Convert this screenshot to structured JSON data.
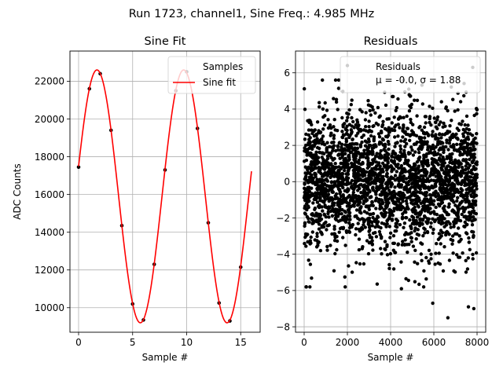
{
  "suptitle": "Run 1723, channel1, Sine Freq.: 4.985 MHz",
  "chart_data": [
    {
      "type": "line",
      "title": "Sine Fit",
      "xlabel": "Sample #",
      "ylabel": "ADC Counts",
      "xlim": [
        -0.8,
        16.8
      ],
      "ylim": [
        8700,
        23600
      ],
      "xticks": [
        0,
        5,
        10,
        15
      ],
      "yticks": [
        10000,
        12000,
        14000,
        16000,
        18000,
        20000,
        22000
      ],
      "grid": true,
      "legend": {
        "position": "top-right",
        "entries": [
          "Samples",
          "Sine fit"
        ]
      },
      "series": [
        {
          "name": "Samples",
          "kind": "scatter",
          "color": "#000000",
          "x": [
            0,
            1,
            2,
            3,
            4,
            5,
            6,
            7,
            8,
            9,
            10,
            11,
            12,
            13,
            14,
            15
          ],
          "y": [
            17450,
            21600,
            22400,
            19400,
            14350,
            10200,
            9350,
            12300,
            17300,
            21500,
            22500,
            19500,
            14500,
            10250,
            9300,
            12150
          ]
        },
        {
          "name": "Sine fit",
          "kind": "line",
          "color": "#ff0000",
          "model": {
            "offset": 15900,
            "amplitude": 6700,
            "frequency_per_sample": 0.1246,
            "phase_rad": 0.24
          },
          "x_range": [
            0,
            16
          ]
        }
      ]
    },
    {
      "type": "scatter",
      "title": "Residuals",
      "xlabel": "Sample #",
      "ylabel": "",
      "xlim": [
        -400,
        8400
      ],
      "ylim": [
        -8.3,
        7.2
      ],
      "xticks": [
        0,
        2000,
        4000,
        6000,
        8000
      ],
      "yticks": [
        -8,
        -6,
        -4,
        -2,
        0,
        2,
        4,
        6
      ],
      "grid": true,
      "legend": {
        "position": "top-right",
        "entries": [
          "Residuals"
        ],
        "stats_text": "μ = -0.0, σ = 1.88"
      },
      "series": [
        {
          "name": "Residuals",
          "color": "#000000",
          "n_points": 8000,
          "x_range": [
            0,
            8000
          ],
          "mu": -0.0,
          "sigma": 1.88,
          "outliers": [
            {
              "x": 2000,
              "y": 6.4
            },
            {
              "x": 1600,
              "y": 5.6
            },
            {
              "x": 7800,
              "y": 6.3
            },
            {
              "x": 5950,
              "y": -6.7
            },
            {
              "x": 6650,
              "y": -7.5
            },
            {
              "x": 7600,
              "y": -6.9
            },
            {
              "x": 7850,
              "y": -7.0
            },
            {
              "x": 4500,
              "y": -5.9
            },
            {
              "x": 100,
              "y": -5.8
            }
          ]
        }
      ]
    }
  ]
}
